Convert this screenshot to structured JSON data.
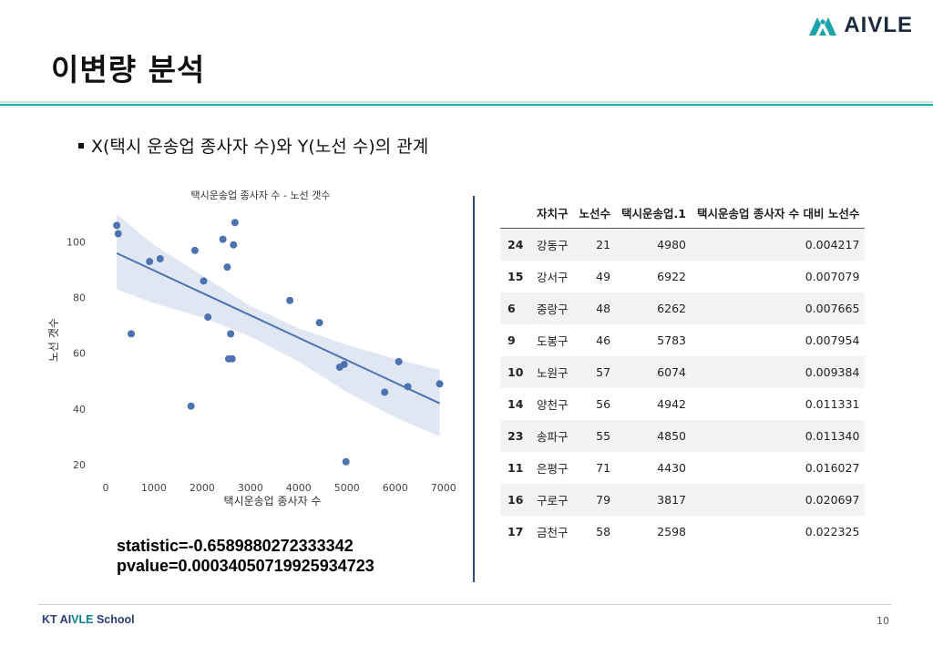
{
  "slide": {
    "title": "이변량 분석",
    "bullet": "X(택시 운송업 종사자 수)와 Y(노선 수)의 관계",
    "logo_text": "AIVLE",
    "footer_brand_prefix": "KT AI",
    "footer_brand_accent": "VLE",
    "footer_brand_suffix": " School",
    "page_number": "10"
  },
  "stats": {
    "statistic": "statistic=-0.6589880272333342",
    "pvalue": "pvalue=0.00034050719925934723"
  },
  "chart_data": {
    "type": "scatter",
    "title": "택시운송업 종사자 수 - 노선 갯수",
    "xlabel": "택시운송업 종사자 수",
    "ylabel": "노선 갯수",
    "xlim": [
      -150,
      7100
    ],
    "ylim": [
      16,
      113
    ],
    "xticks": [
      0,
      1000,
      2000,
      3000,
      4000,
      5000,
      6000,
      7000
    ],
    "yticks": [
      20,
      40,
      60,
      80,
      100
    ],
    "grid": false,
    "point_color": "#4c72b0",
    "points": [
      {
        "x": 230,
        "y": 106
      },
      {
        "x": 260,
        "y": 103
      },
      {
        "x": 530,
        "y": 67
      },
      {
        "x": 910,
        "y": 93
      },
      {
        "x": 1130,
        "y": 94
      },
      {
        "x": 1770,
        "y": 41
      },
      {
        "x": 1850,
        "y": 97
      },
      {
        "x": 2030,
        "y": 86
      },
      {
        "x": 2120,
        "y": 73
      },
      {
        "x": 2430,
        "y": 101
      },
      {
        "x": 2520,
        "y": 91
      },
      {
        "x": 2550,
        "y": 58
      },
      {
        "x": 2590,
        "y": 67
      },
      {
        "x": 2620,
        "y": 58
      },
      {
        "x": 2650,
        "y": 99
      },
      {
        "x": 2680,
        "y": 107
      },
      {
        "x": 3817,
        "y": 79
      },
      {
        "x": 4430,
        "y": 71
      },
      {
        "x": 4850,
        "y": 55
      },
      {
        "x": 4942,
        "y": 56
      },
      {
        "x": 4980,
        "y": 21
      },
      {
        "x": 5783,
        "y": 46
      },
      {
        "x": 6074,
        "y": 57
      },
      {
        "x": 6262,
        "y": 48
      },
      {
        "x": 6922,
        "y": 49
      }
    ],
    "regression": {
      "x1": 230,
      "y1": 96,
      "x2": 6922,
      "y2": 42
    },
    "ci_band": {
      "x": [
        230,
        1000,
        2000,
        3000,
        4000,
        5000,
        6000,
        6922
      ],
      "upper": [
        110,
        99,
        88,
        77,
        69,
        63,
        58,
        54
      ],
      "lower": [
        83,
        78,
        73,
        66,
        57,
        46,
        37,
        30
      ]
    }
  },
  "table": {
    "headers": [
      "",
      "자치구",
      "노선수",
      "택시운송업.1",
      "택시운송업 종사자 수 대비 노선수"
    ],
    "rows": [
      {
        "idx": "24",
        "gu": "강동구",
        "routes": "21",
        "taxi": "4980",
        "ratio": "0.004217"
      },
      {
        "idx": "15",
        "gu": "강서구",
        "routes": "49",
        "taxi": "6922",
        "ratio": "0.007079"
      },
      {
        "idx": "6",
        "gu": "중랑구",
        "routes": "48",
        "taxi": "6262",
        "ratio": "0.007665"
      },
      {
        "idx": "9",
        "gu": "도봉구",
        "routes": "46",
        "taxi": "5783",
        "ratio": "0.007954"
      },
      {
        "idx": "10",
        "gu": "노원구",
        "routes": "57",
        "taxi": "6074",
        "ratio": "0.009384"
      },
      {
        "idx": "14",
        "gu": "양천구",
        "routes": "56",
        "taxi": "4942",
        "ratio": "0.011331"
      },
      {
        "idx": "23",
        "gu": "송파구",
        "routes": "55",
        "taxi": "4850",
        "ratio": "0.011340"
      },
      {
        "idx": "11",
        "gu": "은평구",
        "routes": "71",
        "taxi": "4430",
        "ratio": "0.016027"
      },
      {
        "idx": "16",
        "gu": "구로구",
        "routes": "79",
        "taxi": "3817",
        "ratio": "0.020697"
      },
      {
        "idx": "17",
        "gu": "금천구",
        "routes": "58",
        "taxi": "2598",
        "ratio": "0.022325"
      }
    ]
  }
}
